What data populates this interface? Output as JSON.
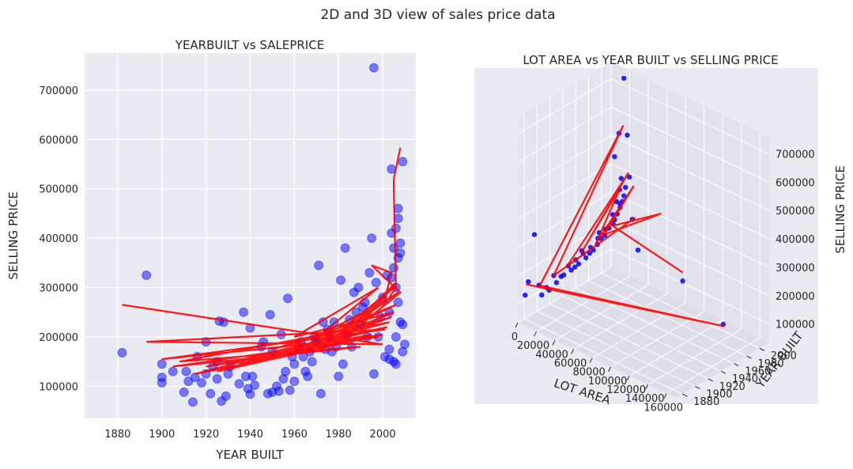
{
  "figure": {
    "suptitle": "2D and 3D view of sales price data"
  },
  "colors": {
    "background": "#EAEAF2",
    "grid": "#FFFFFF",
    "points": "#0000FF",
    "fit_line": "#FF0000"
  },
  "chart_data": [
    {
      "type": "scatter",
      "title": "YEARBUILT vs SALEPRICE",
      "xlabel": "YEAR BUILT",
      "ylabel": "SELLING PRICE",
      "xlim": [
        1865,
        2015
      ],
      "ylim": [
        35000,
        775000
      ],
      "xticks": [
        1880,
        1900,
        1920,
        1940,
        1960,
        1980,
        2000
      ],
      "yticks": [
        100000,
        200000,
        300000,
        400000,
        500000,
        600000,
        700000
      ],
      "grid": true,
      "series": [
        {
          "kind": "points",
          "x": [
            1882,
            1893,
            1900,
            1900,
            1900,
            1905,
            1910,
            1911,
            1912,
            1914,
            1915,
            1916,
            1918,
            1920,
            1920,
            1922,
            1923,
            1925,
            1925,
            1926,
            1927,
            1928,
            1929,
            1930,
            1931,
            1935,
            1937,
            1938,
            1939,
            1940,
            1940,
            1941,
            1942,
            1945,
            1946,
            1948,
            1949,
            1950,
            1950,
            1952,
            1953,
            1954,
            1955,
            1956,
            1957,
            1958,
            1959,
            1960,
            1960,
            1962,
            1963,
            1964,
            1965,
            1966,
            1967,
            1968,
            1969,
            1970,
            1971,
            1972,
            1973,
            1974,
            1975,
            1976,
            1977,
            1978,
            1979,
            1980,
            1981,
            1982,
            1983,
            1984,
            1985,
            1986,
            1987,
            1988,
            1989,
            1990,
            1991,
            1992,
            1993,
            1994,
            1995,
            1996,
            1997,
            1998,
            1999,
            2000,
            2001,
            2002,
            2003,
            2003,
            2004,
            2004,
            2005,
            2005,
            2006,
            2006,
            2006,
            2007,
            2007,
            2007,
            2008,
            2008,
            2008,
            2009,
            2009,
            2010,
            1996,
            2003,
            2004,
            2006,
            2007,
            2009,
            2005
          ],
          "y": [
            168000,
            325000,
            145000,
            118000,
            107000,
            130000,
            88000,
            130000,
            110000,
            68000,
            118000,
            160000,
            107000,
            125000,
            190000,
            85000,
            140000,
            115000,
            150000,
            232000,
            70000,
            230000,
            80000,
            125000,
            140000,
            105000,
            250000,
            120000,
            95000,
            218000,
            84000,
            120000,
            102000,
            180000,
            190000,
            85000,
            245000,
            88000,
            170000,
            100000,
            90000,
            205000,
            115000,
            130000,
            278000,
            92000,
            160000,
            145000,
            110000,
            175000,
            190000,
            160000,
            130000,
            120000,
            170000,
            150000,
            200000,
            190000,
            345000,
            85000,
            230000,
            175000,
            215000,
            200000,
            170000,
            230000,
            180000,
            120000,
            315000,
            145000,
            380000,
            205000,
            235000,
            180000,
            290000,
            250000,
            300000,
            225000,
            260000,
            270000,
            200000,
            330000,
            400000,
            745000,
            310000,
            200000,
            240000,
            280000,
            160000,
            325000,
            175000,
            250000,
            540000,
            410000,
            150000,
            380000,
            420000,
            300000,
            200000,
            460000,
            440000,
            270000,
            390000,
            230000,
            370000,
            555000,
            225000,
            185000,
            125000,
            155000,
            320000,
            145000,
            360000,
            170000,
            340000
          ]
        },
        {
          "kind": "line",
          "x": [
            1882,
            2000,
            1893,
            2001,
            1900,
            1998,
            1905,
            1990,
            1908,
            2003,
            1915,
            1970,
            1920,
            1995,
            1925,
            2000,
            1930,
            1975,
            1935,
            2002,
            1940,
            1985,
            1945,
            2004,
            1950,
            1993,
            1955,
            2005,
            1960,
            1998,
            1965,
            2006,
            1970,
            2004,
            1975,
            2007,
            1980,
            2005,
            1985,
            2006,
            1990,
            2008,
            1995,
            2004,
            2000,
            2006,
            2005,
            2005,
            2008
          ],
          "y": [
            265000,
            185000,
            190000,
            215000,
            155000,
            200000,
            140000,
            180000,
            150000,
            230000,
            125000,
            175000,
            140000,
            205000,
            130000,
            205000,
            150000,
            185000,
            145000,
            220000,
            160000,
            200000,
            150000,
            240000,
            175000,
            230000,
            160000,
            250000,
            200000,
            300000,
            180000,
            265000,
            200000,
            280000,
            190000,
            290000,
            210000,
            300000,
            220000,
            310000,
            225000,
            290000,
            345000,
            330000,
            260000,
            300000,
            500000,
            520000,
            583000
          ]
        }
      ]
    },
    {
      "type": "scatter",
      "title": "LOT AREA vs YEAR BUILT vs SELLING PRICE",
      "xlabel": "LOT AREA",
      "ylabel": "YEAR BUILT",
      "zlabel": "SELLING PRICE",
      "xticks": [
        0,
        20000,
        40000,
        60000,
        80000,
        100000,
        120000,
        140000,
        160000
      ],
      "yticks": [
        1880,
        1900,
        1920,
        1940,
        1960,
        1980,
        2000
      ],
      "zticks": [
        100000,
        200000,
        300000,
        400000,
        500000,
        600000,
        700000
      ],
      "xlim": [
        0,
        170000
      ],
      "ylim": [
        1870,
        2015
      ],
      "zlim": [
        35000,
        760000
      ],
      "grid": true,
      "series": [
        {
          "kind": "points",
          "x": [
            1000,
            2000,
            3000,
            4000,
            5000,
            6000,
            7000,
            8000,
            9000,
            10000,
            11000,
            12000,
            13000,
            14000,
            15000,
            5000,
            7000,
            9000,
            11000,
            13000,
            15000,
            17000,
            19000,
            21000,
            6000,
            8000,
            10000,
            12000,
            14000,
            16000,
            18000,
            20000,
            4000,
            9500,
            11500,
            13500,
            15500,
            17500,
            3000,
            20000,
            25000,
            30000,
            40000,
            60000,
            115000,
            160000,
            8000,
            12000,
            10000,
            14000
          ],
          "y": [
            1880,
            1900,
            1910,
            1920,
            1930,
            1940,
            1950,
            1960,
            1970,
            1980,
            1990,
            2000,
            2005,
            2008,
            2009,
            1900,
            1920,
            1940,
            1960,
            1975,
            1990,
            2000,
            2005,
            2007,
            1910,
            1930,
            1950,
            1970,
            1985,
            1995,
            2003,
            2006,
            1890,
            1945,
            1965,
            1980,
            1998,
            2004,
            1882,
            2006,
            2004,
            2000,
            1990,
            1970,
            1960,
            1958,
            1985,
            2003,
            1955,
            2007
          ],
          "z": [
            120000,
            130000,
            110000,
            140000,
            125000,
            150000,
            160000,
            170000,
            180000,
            200000,
            220000,
            260000,
            300000,
            340000,
            380000,
            100000,
            120000,
            140000,
            160000,
            190000,
            230000,
            270000,
            310000,
            360000,
            105000,
            135000,
            150000,
            175000,
            210000,
            240000,
            290000,
            330000,
            325000,
            145000,
            170000,
            205000,
            250000,
            300000,
            168000,
            745000,
            555000,
            420000,
            300000,
            250000,
            240000,
            160000,
            210000,
            460000,
            190000,
            540000
          ]
        },
        {
          "kind": "line",
          "x": [
            2000,
            160000,
            3000,
            20000,
            4000,
            40000,
            5000,
            25000,
            6000,
            15000,
            8000,
            30000,
            10000,
            60000,
            12000,
            115000
          ],
          "y": [
            1880,
            1960,
            1900,
            2005,
            1920,
            1995,
            1940,
            2006,
            1960,
            2008,
            1980,
            2007,
            1990,
            2006,
            2000,
            1960
          ],
          "z": [
            160000,
            150000,
            130000,
            580000,
            140000,
            300000,
            150000,
            420000,
            170000,
            350000,
            180000,
            380000,
            200000,
            330000,
            220000,
            270000
          ]
        }
      ]
    }
  ]
}
